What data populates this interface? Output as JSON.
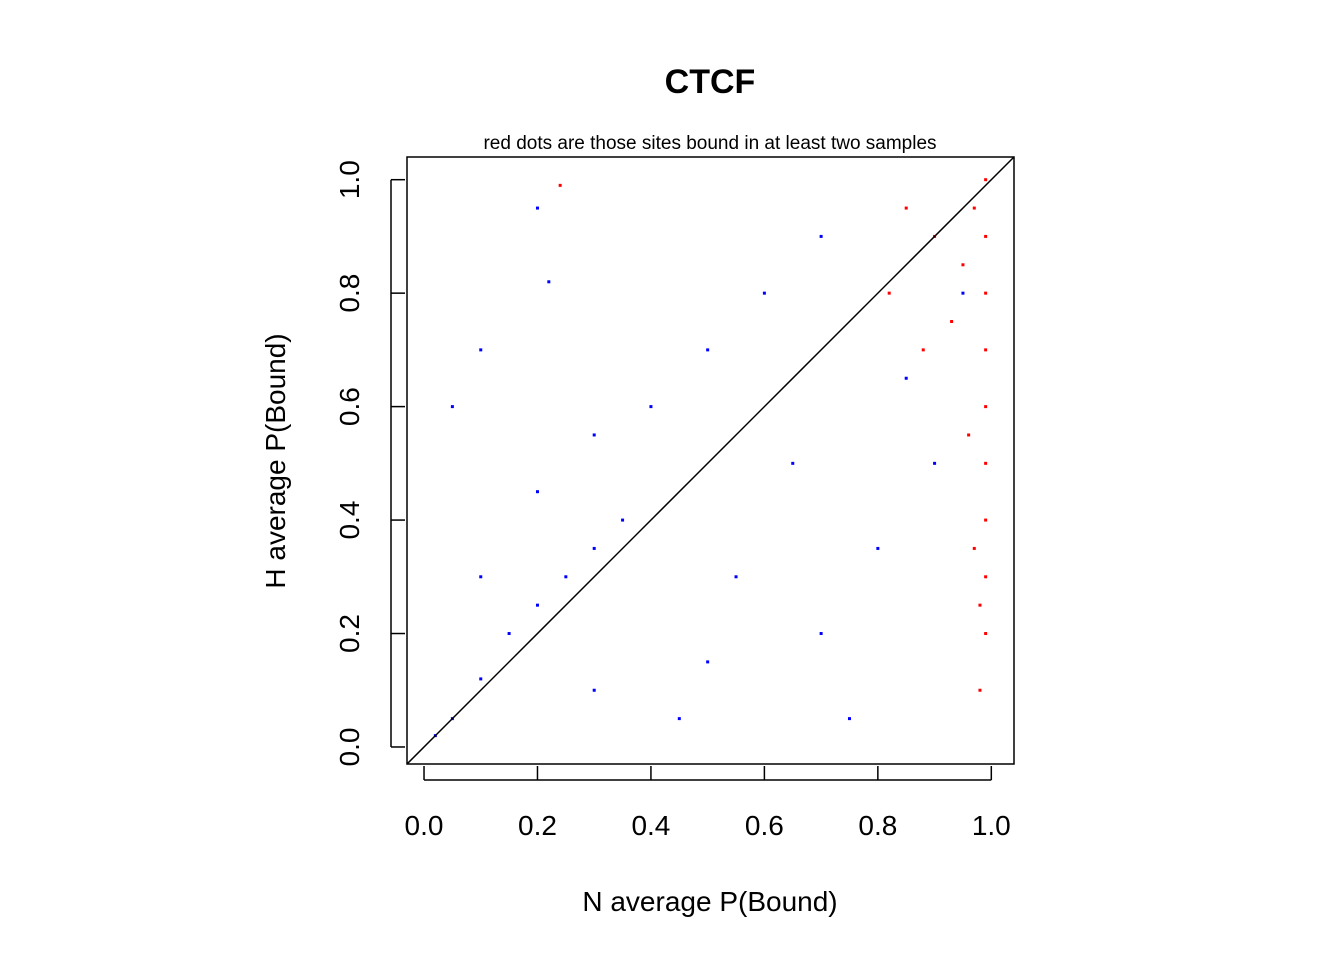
{
  "chart_data": {
    "type": "scatter",
    "title": "CTCF",
    "subtitle": "red dots are those sites bound in at least two samples",
    "xlabel": "N average P(Bound)",
    "ylabel": "H average P(Bound)",
    "xlim": [
      -0.03,
      1.04
    ],
    "ylim": [
      -0.03,
      1.04
    ],
    "xticks": [
      0.0,
      0.2,
      0.4,
      0.6,
      0.8,
      1.0
    ],
    "yticks": [
      0.0,
      0.2,
      0.4,
      0.6,
      0.8,
      1.0
    ],
    "xtick_labels": [
      "0.0",
      "0.2",
      "0.4",
      "0.6",
      "0.8",
      "1.0"
    ],
    "ytick_labels": [
      "0.0",
      "0.2",
      "0.4",
      "0.6",
      "0.8",
      "1.0"
    ],
    "reference_line": {
      "slope": 1,
      "intercept": 0,
      "color": "#000000"
    },
    "grid": false,
    "series": [
      {
        "color": "#0000ff",
        "points": [
          [
            0.02,
            0.02
          ],
          [
            0.05,
            0.05
          ],
          [
            0.1,
            0.12
          ],
          [
            0.15,
            0.2
          ],
          [
            0.2,
            0.25
          ],
          [
            0.25,
            0.3
          ],
          [
            0.3,
            0.35
          ],
          [
            0.35,
            0.4
          ],
          [
            0.1,
            0.3
          ],
          [
            0.2,
            0.45
          ],
          [
            0.3,
            0.55
          ],
          [
            0.4,
            0.6
          ],
          [
            0.5,
            0.7
          ],
          [
            0.6,
            0.8
          ],
          [
            0.7,
            0.9
          ],
          [
            0.3,
            0.1
          ],
          [
            0.5,
            0.15
          ],
          [
            0.7,
            0.2
          ],
          [
            0.8,
            0.35
          ],
          [
            0.9,
            0.5
          ],
          [
            0.05,
            0.6
          ],
          [
            0.1,
            0.7
          ],
          [
            0.22,
            0.82
          ],
          [
            0.2,
            0.95
          ],
          [
            0.55,
            0.3
          ],
          [
            0.65,
            0.5
          ],
          [
            0.85,
            0.65
          ],
          [
            0.95,
            0.8
          ],
          [
            0.45,
            0.05
          ],
          [
            0.75,
            0.05
          ]
        ]
      },
      {
        "color": "#ff0000",
        "points": [
          [
            0.99,
            1.0
          ],
          [
            0.99,
            0.9
          ],
          [
            0.99,
            0.8
          ],
          [
            0.99,
            0.7
          ],
          [
            0.99,
            0.6
          ],
          [
            0.99,
            0.5
          ],
          [
            0.99,
            0.4
          ],
          [
            0.99,
            0.3
          ],
          [
            0.99,
            0.2
          ],
          [
            0.98,
            0.1
          ],
          [
            0.97,
            0.95
          ],
          [
            0.95,
            0.85
          ],
          [
            0.93,
            0.75
          ],
          [
            0.9,
            0.9
          ],
          [
            0.88,
            0.7
          ],
          [
            0.85,
            0.95
          ],
          [
            0.82,
            0.8
          ],
          [
            0.96,
            0.55
          ],
          [
            0.97,
            0.35
          ],
          [
            0.98,
            0.25
          ],
          [
            0.24,
            0.99
          ]
        ]
      }
    ]
  }
}
